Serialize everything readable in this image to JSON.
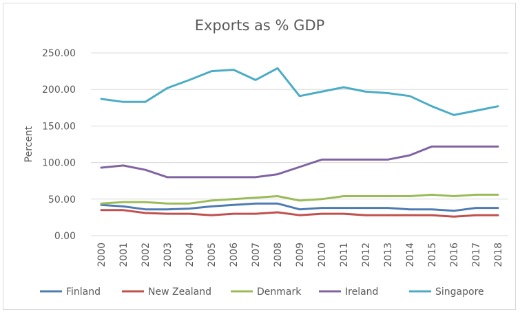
{
  "chart_data": {
    "type": "line",
    "title": "Exports as % GDP",
    "xlabel": "",
    "ylabel": "Percent",
    "ylim": [
      0,
      250
    ],
    "yticks": [
      "0.00",
      "50.00",
      "100.00",
      "150.00",
      "200.00",
      "250.00"
    ],
    "grid": true,
    "legend": "bottom",
    "categories": [
      "2000",
      "2001",
      "2002",
      "2003",
      "2004",
      "2005",
      "2006",
      "2007",
      "2008",
      "2009",
      "2010",
      "2011",
      "2012",
      "2013",
      "2014",
      "2015",
      "2016",
      "2017",
      "2018"
    ],
    "series": [
      {
        "name": "Finland",
        "color": "#4f7bb3",
        "values": [
          42,
          40,
          36,
          36,
          37,
          40,
          42,
          44,
          44,
          36,
          38,
          38,
          38,
          38,
          36,
          36,
          34,
          38,
          38
        ]
      },
      {
        "name": "New Zealand",
        "color": "#c0504d",
        "values": [
          35,
          35,
          31,
          30,
          30,
          28,
          30,
          30,
          32,
          28,
          30,
          30,
          28,
          28,
          28,
          28,
          26,
          28,
          28
        ]
      },
      {
        "name": "Denmark",
        "color": "#9bbb59",
        "values": [
          44,
          46,
          46,
          44,
          44,
          48,
          50,
          52,
          54,
          48,
          50,
          54,
          54,
          54,
          54,
          56,
          54,
          56,
          56
        ]
      },
      {
        "name": "Ireland",
        "color": "#8064a2",
        "values": [
          93,
          96,
          90,
          80,
          80,
          80,
          80,
          80,
          84,
          94,
          104,
          104,
          104,
          104,
          110,
          122,
          122,
          122,
          122
        ]
      },
      {
        "name": "Singapore",
        "color": "#4bacc6",
        "values": [
          187,
          183,
          183,
          202,
          213,
          225,
          227,
          213,
          229,
          191,
          197,
          203,
          197,
          195,
          191,
          177,
          165,
          171,
          177
        ]
      }
    ]
  }
}
